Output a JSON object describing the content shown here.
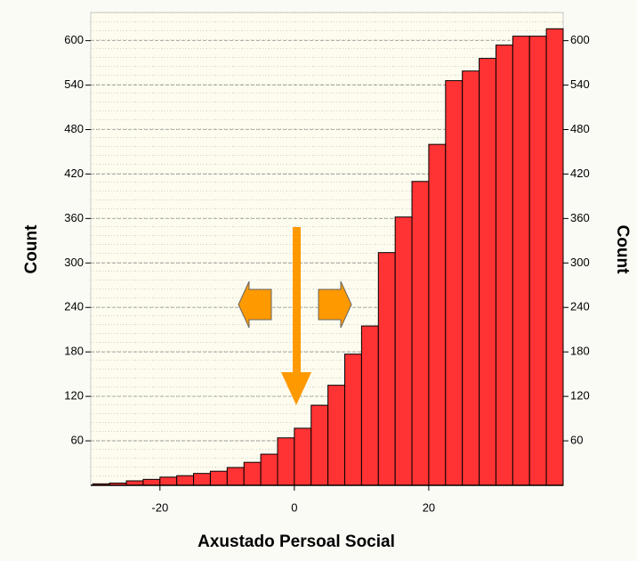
{
  "chart_data": {
    "type": "histogram",
    "x_label": "Axustado Persoal Social",
    "y_label": "Count",
    "y2_label": "Count",
    "bins": [
      -30,
      -27.5,
      -25,
      -22.5,
      -20,
      -17.5,
      -15,
      -12.5,
      -10,
      -7.5,
      -5,
      -2.5,
      0,
      2.5,
      5,
      7.5,
      10,
      12.5,
      15,
      17.5,
      20,
      22.5,
      25,
      27.5,
      30,
      32.5,
      35,
      37.5,
      40
    ],
    "values": [
      2,
      3,
      6,
      8,
      11,
      13,
      16,
      19,
      24,
      31,
      42,
      64,
      77,
      108,
      135,
      177,
      215,
      314,
      362,
      410,
      460,
      546,
      559,
      576,
      594,
      606,
      606,
      616
    ],
    "color": "#ff3333",
    "xlim": [
      -30.3,
      40
    ],
    "xticks": [
      -20,
      0,
      20
    ],
    "ylim": [
      0,
      638
    ],
    "yticks": [
      60,
      120,
      180,
      240,
      300,
      360,
      420,
      480,
      540,
      600
    ],
    "grid": true
  }
}
